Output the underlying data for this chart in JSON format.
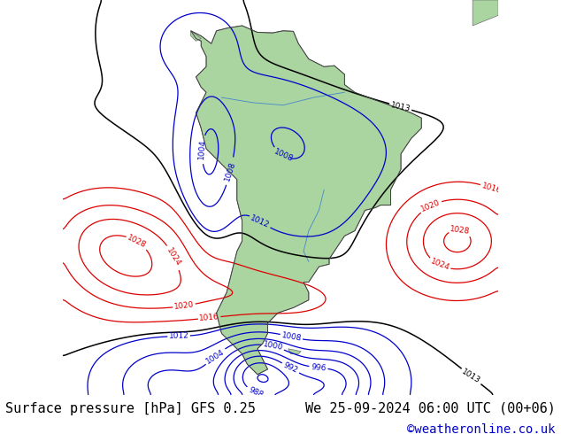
{
  "title_left": "Surface pressure [hPa] GFS 0.25",
  "title_right": "We 25-09-2024 06:00 UTC (00+06)",
  "credit": "©weatheronline.co.uk",
  "title_fontsize": 11,
  "credit_fontsize": 10,
  "credit_color": "#0000cc",
  "text_color": "#000000",
  "bg_color": "#ffffff",
  "map_bg": "#d8d8d8",
  "land_green": "#aad4a0",
  "ocean_light": "#e8e8e8",
  "figsize": [
    6.34,
    4.9
  ],
  "dpi": 100
}
